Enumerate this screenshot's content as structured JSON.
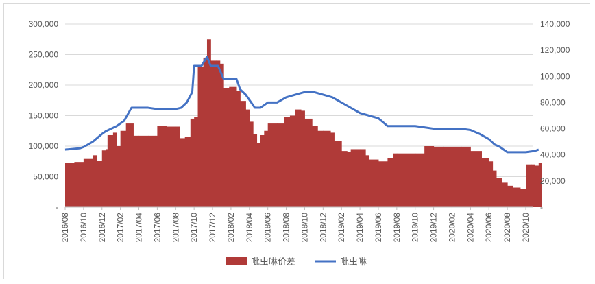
{
  "chart_data": {
    "type": "bar+line",
    "title": "",
    "x_categories": [
      "2016/08",
      "2016/10",
      "2016/12",
      "2017/02",
      "2017/04",
      "2017/06",
      "2017/08",
      "2017/10",
      "2017/12",
      "2018/02",
      "2018/04",
      "2018/06",
      "2018/08",
      "2018/10",
      "2018/12",
      "2019/02",
      "2019/04",
      "2019/06",
      "2019/08",
      "2019/10",
      "2019/12",
      "2020/02",
      "2020/04",
      "2020/06",
      "2020/08",
      "2020/10"
    ],
    "y_left": {
      "min": 0,
      "max": 300000,
      "ticks": [
        "-",
        "50,000",
        "100,000",
        "150,000",
        "200,000",
        "250,000",
        "300,000"
      ]
    },
    "y_right": {
      "min": 0,
      "max": 140000,
      "ticks": [
        "-",
        "20,000",
        "40,000",
        "60,000",
        "80,000",
        "100,000",
        "120,000",
        "140,000"
      ]
    },
    "grid": "horizontal",
    "legend_position": "bottom",
    "series": [
      {
        "name": "吡虫啉价差",
        "type": "bar",
        "axis": "left",
        "color": "#b03a38",
        "points": [
          [
            0,
            72000
          ],
          [
            0.5,
            74000
          ],
          [
            1,
            79000
          ],
          [
            1.5,
            85000
          ],
          [
            1.7,
            76000
          ],
          [
            2,
            93000
          ],
          [
            2.2,
            95000
          ],
          [
            2.3,
            118000
          ],
          [
            2.6,
            122000
          ],
          [
            2.8,
            100000
          ],
          [
            3,
            125000
          ],
          [
            3.3,
            137000
          ],
          [
            3.7,
            117000
          ],
          [
            4,
            117000
          ],
          [
            4.5,
            117000
          ],
          [
            4.9,
            117000
          ],
          [
            5,
            133000
          ],
          [
            5.5,
            132000
          ],
          [
            6,
            132000
          ],
          [
            6.2,
            113000
          ],
          [
            6.5,
            115000
          ],
          [
            6.8,
            145000
          ],
          [
            7,
            148000
          ],
          [
            7.2,
            230000
          ],
          [
            7.5,
            245000
          ],
          [
            7.7,
            275000
          ],
          [
            7.9,
            240000
          ],
          [
            8.2,
            240000
          ],
          [
            8.4,
            235000
          ],
          [
            8.6,
            195000
          ],
          [
            8.9,
            197000
          ],
          [
            9.3,
            190000
          ],
          [
            9.5,
            174000
          ],
          [
            9.8,
            160000
          ],
          [
            10,
            140000
          ],
          [
            10.2,
            120000
          ],
          [
            10.4,
            105000
          ],
          [
            10.6,
            118000
          ],
          [
            10.8,
            125000
          ],
          [
            11,
            137000
          ],
          [
            11.5,
            137000
          ],
          [
            11.9,
            148000
          ],
          [
            12.2,
            150000
          ],
          [
            12.5,
            160000
          ],
          [
            12.8,
            158000
          ],
          [
            13,
            145000
          ],
          [
            13.4,
            133000
          ],
          [
            13.7,
            125000
          ],
          [
            14,
            125000
          ],
          [
            14.4,
            122000
          ],
          [
            14.6,
            108000
          ],
          [
            15,
            92000
          ],
          [
            15.3,
            90000
          ],
          [
            15.5,
            95000
          ],
          [
            16,
            95000
          ],
          [
            16.3,
            85000
          ],
          [
            16.5,
            78000
          ],
          [
            17,
            75000
          ],
          [
            17.5,
            80000
          ],
          [
            17.8,
            88000
          ],
          [
            18,
            88000
          ],
          [
            18.5,
            88000
          ],
          [
            19,
            88000
          ],
          [
            19.5,
            100000
          ],
          [
            20,
            99000
          ],
          [
            20.5,
            99000
          ],
          [
            21,
            99000
          ],
          [
            21.5,
            99000
          ],
          [
            22,
            92000
          ],
          [
            22.4,
            92000
          ],
          [
            22.6,
            80000
          ],
          [
            23,
            75000
          ],
          [
            23.2,
            60000
          ],
          [
            23.4,
            48000
          ],
          [
            23.7,
            40000
          ],
          [
            24,
            35000
          ],
          [
            24.3,
            32000
          ],
          [
            24.7,
            30000
          ],
          [
            25,
            70000
          ],
          [
            25.3,
            70000
          ],
          [
            25.5,
            68000
          ],
          [
            25.7,
            72000
          ]
        ]
      },
      {
        "name": "吡虫啉",
        "type": "line",
        "axis": "right",
        "color": "#4472c4",
        "points": [
          [
            0,
            44000
          ],
          [
            0.8,
            45000
          ],
          [
            1,
            46000
          ],
          [
            1.5,
            50000
          ],
          [
            2,
            56000
          ],
          [
            2.2,
            58000
          ],
          [
            2.8,
            62000
          ],
          [
            3.2,
            66000
          ],
          [
            3.6,
            76000
          ],
          [
            4,
            76000
          ],
          [
            4.5,
            76000
          ],
          [
            5,
            75000
          ],
          [
            5.5,
            75000
          ],
          [
            6,
            75000
          ],
          [
            6.3,
            76000
          ],
          [
            6.6,
            80000
          ],
          [
            6.9,
            88000
          ],
          [
            7,
            108000
          ],
          [
            7.4,
            108000
          ],
          [
            7.7,
            115000
          ],
          [
            7.9,
            108000
          ],
          [
            8.3,
            108000
          ],
          [
            8.6,
            98000
          ],
          [
            9,
            98000
          ],
          [
            9.3,
            98000
          ],
          [
            9.5,
            90000
          ],
          [
            9.8,
            86000
          ],
          [
            10,
            82000
          ],
          [
            10.3,
            76000
          ],
          [
            10.6,
            76000
          ],
          [
            11,
            80000
          ],
          [
            11.5,
            80000
          ],
          [
            12,
            84000
          ],
          [
            12.5,
            86000
          ],
          [
            13,
            88000
          ],
          [
            13.5,
            88000
          ],
          [
            14,
            86000
          ],
          [
            14.5,
            84000
          ],
          [
            15,
            80000
          ],
          [
            15.5,
            76000
          ],
          [
            16,
            72000
          ],
          [
            16.5,
            70000
          ],
          [
            17,
            68000
          ],
          [
            17.5,
            62000
          ],
          [
            18,
            62000
          ],
          [
            18.5,
            62000
          ],
          [
            19,
            62000
          ],
          [
            19.5,
            61000
          ],
          [
            20,
            60000
          ],
          [
            20.5,
            60000
          ],
          [
            21,
            60000
          ],
          [
            21.5,
            60000
          ],
          [
            22,
            59000
          ],
          [
            22.5,
            56000
          ],
          [
            23,
            52000
          ],
          [
            23.3,
            48000
          ],
          [
            23.6,
            46000
          ],
          [
            24,
            42000
          ],
          [
            24.5,
            42000
          ],
          [
            25,
            42000
          ],
          [
            25.5,
            43000
          ],
          [
            25.7,
            44000
          ]
        ]
      }
    ]
  }
}
